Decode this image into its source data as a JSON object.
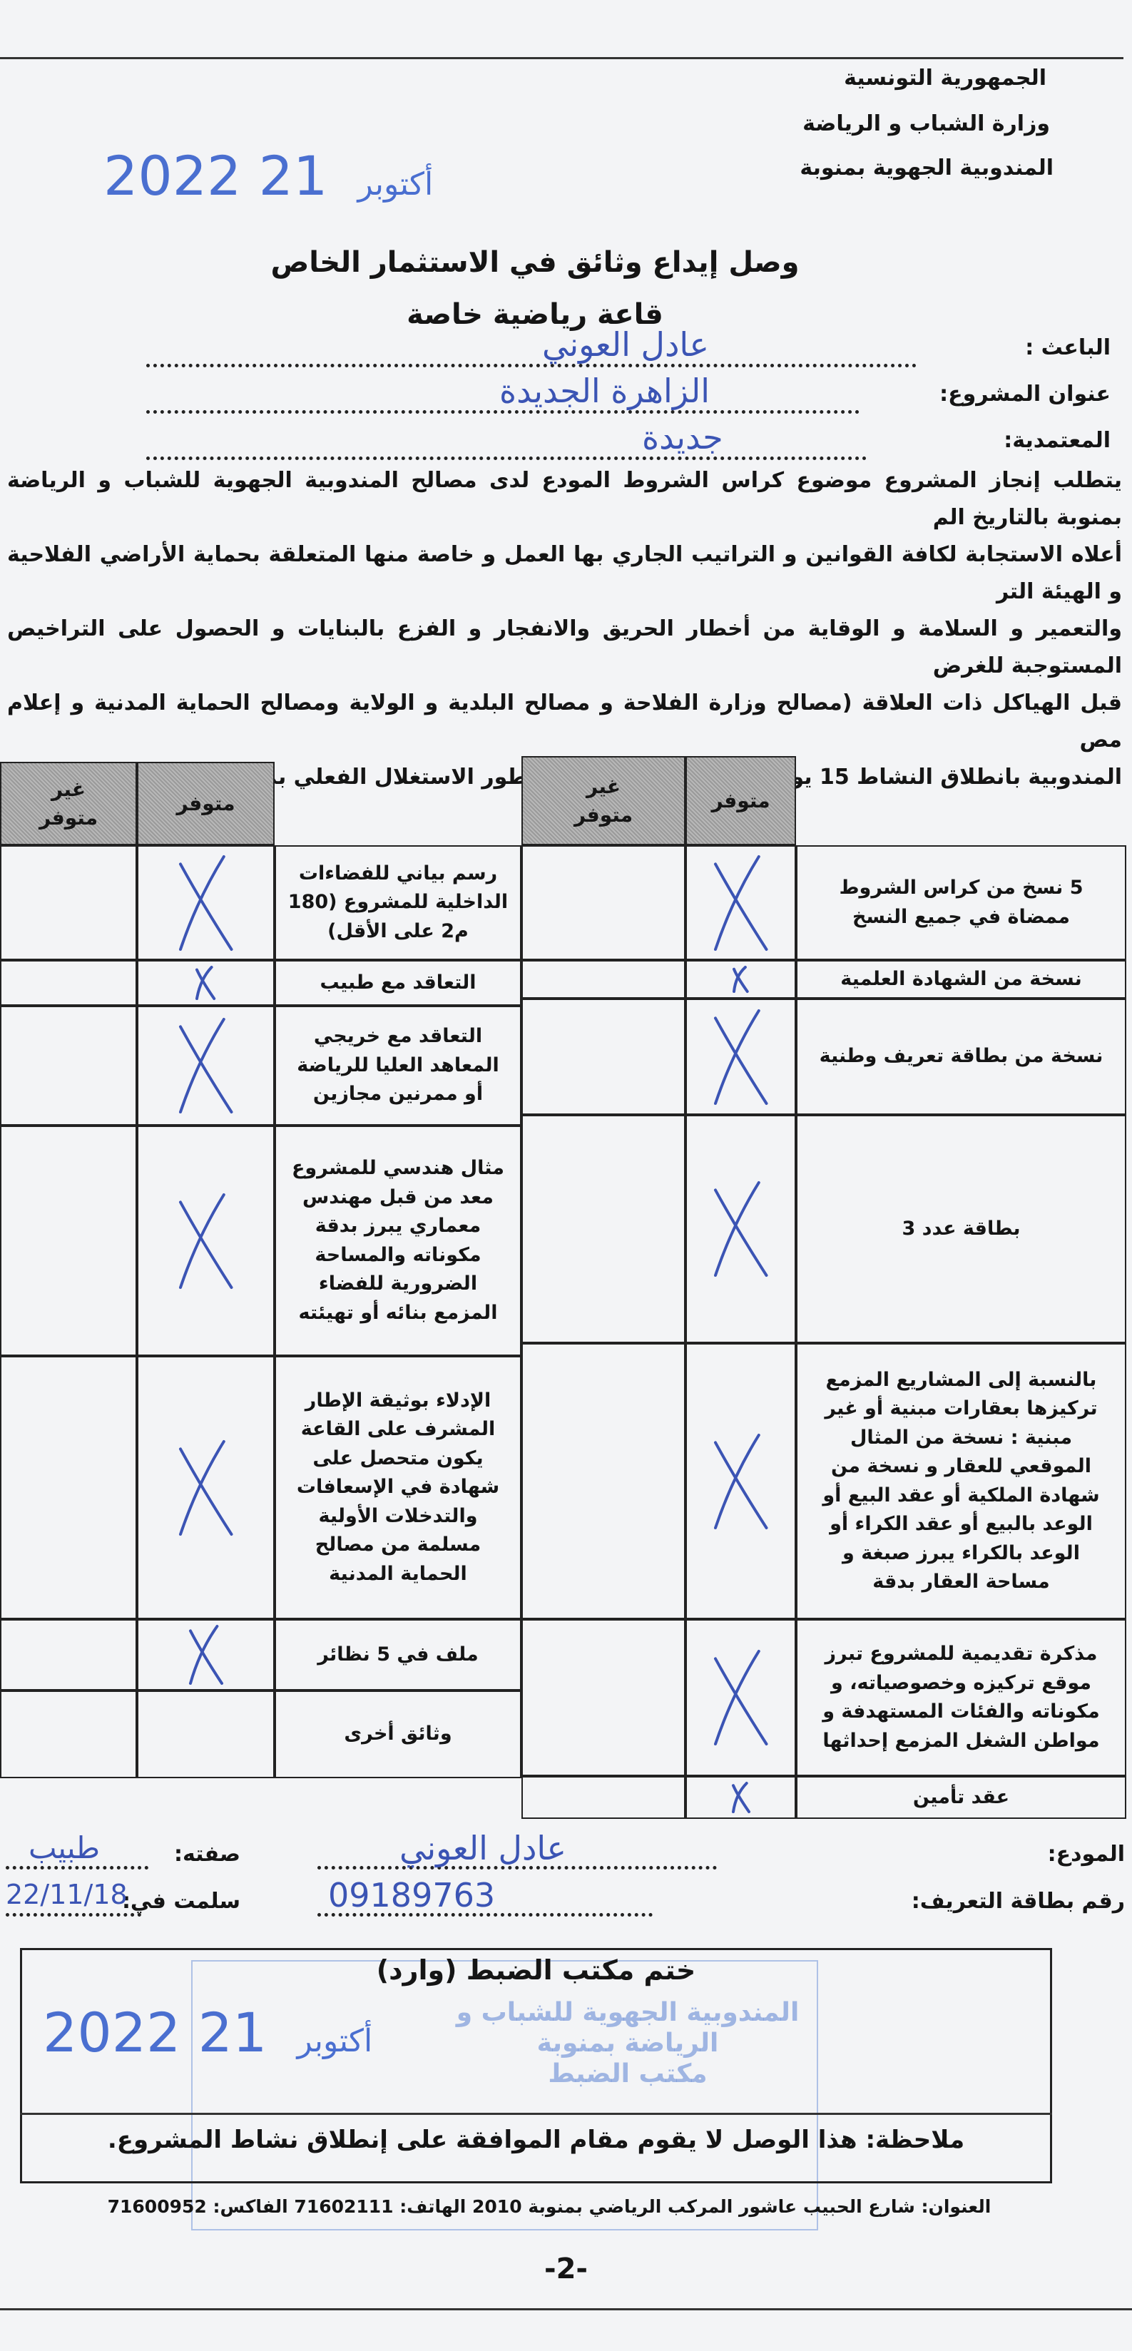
{
  "header": {
    "line1": "الجمهورية التونسية",
    "line2": "وزارة الشباب و الرياضة",
    "line3": "المندوبية الجهوية بمنوبة"
  },
  "date_stamp": {
    "day": "21",
    "month": "أكتوبر",
    "year": "2022"
  },
  "title": "وصل إيداع وثائق في الاستثمار الخاص",
  "subtitle": "قاعة رياضية خاصة",
  "fields": [
    {
      "label": "الباعث :",
      "value": "عادل العوني"
    },
    {
      "label": "عنوان المشروع:",
      "value": "الزاهرة الجديدة"
    },
    {
      "label": "المعتمدية:",
      "value": "جديدة"
    }
  ],
  "paragraph": [
    "يتطلب إنجاز المشروع موضوع كراس الشروط المودع لدى مصالح المندوبية الجهوية للشباب و الرياضة بمنوبة بالتاريخ الم",
    "أعلاه الاستجابة لكافة القوانين و التراتيب الجاري  بها العمل و خاصة منها المتعلقة بحماية الأراضي الفلاحية و الهيئة التر",
    "والتعمير و السلامة و الوقاية من أخطار الحريق والانفجار و الفزع بالبنايات و الحصول على التراخيص المستوجبة للغرض",
    "قبل الهياكل ذات العلاقة (مصالح وزارة الفلاحة و مصالح البلدية و الولاية ومصالح الحماية المدنية و إعلام مص",
    "المندوبية بانطلاق النشاط 15 يوما قبل تاريخ الدخول في طور الاستغلال الفعلي بمكتوب مضمون الوصول)."
  ],
  "table": {
    "col_available": "متوفر",
    "col_unavailable": "غير متوفر",
    "mark_color": "#3b54b4",
    "right_rows": [
      {
        "label": "5 نسخ من كراس الشروط ممضاة في جميع النسخ",
        "available": true
      },
      {
        "label": "نسخة من الشهادة العلمية",
        "available": true
      },
      {
        "label": "نسخة من بطاقة تعريف وطنية",
        "available": true
      },
      {
        "label": "بطاقة عدد 3",
        "available": true
      },
      {
        "label": "بالنسبة إلى المشاريع المزمع تركيزها بعقارات مبنية أو غير مبنية : نسخة من المثال الموقعي للعقار و نسخة من شهادة الملكية أو عقد البيع أو الوعد بالبيع أو عقد الكراء أو الوعد بالكراء يبرز صبغة و مساحة العقار بدقة",
        "available": true
      },
      {
        "label": "مذكرة تقديمية للمشروع تبرز موقع تركيزه وخصوصياته، و مكوناته والفئات المستهدفة و مواطن الشغل المزمع إحداثها",
        "available": true
      },
      {
        "label": "عقد تأمين",
        "available": true
      }
    ],
    "left_rows": [
      {
        "label": "رسم بياني للفضاءات الداخلية للمشروع (180 م2 على الأقل)",
        "available": true
      },
      {
        "label": "التعاقد مع طبيب",
        "available": true
      },
      {
        "label": "التعاقد مع خريجي المعاهد العليا للرياضة أو ممرنين مجازين",
        "available": true
      },
      {
        "label": "مثال هندسي للمشروع معد من قبل مهندس معماري يبرز بدقة مكوناته والمساحة الضرورية للفضاء المزمع بنائه أو تهيئته",
        "available": true
      },
      {
        "label": "الإدلاء بوثيقة الإطار المشرف على القاعة يكون متحصل على شهادة في الإسعافات والتدخلات الأولية مسلمة من مصالح الحماية المدنية",
        "available": true
      },
      {
        "label": "ملف في 5 نظائر",
        "available": true
      },
      {
        "label": "وثائق أخرى",
        "available": false
      }
    ]
  },
  "signature": {
    "depositor_label": "المودع:",
    "depositor_value": "عادل العوني",
    "id_label": "رقم بطاقة التعريف:",
    "id_value": "09189763",
    "role_label": "صفته:",
    "role_value": "طبيب",
    "delivered_label": "سلمت في:",
    "delivered_value": "22/11/18"
  },
  "office_box": {
    "title": "ختم مكتب الضبط (وارد)",
    "stamp_line1": "المندوبية الجهوية للشباب و الرياضة بمنوبة",
    "stamp_line2": "مكتب الضبط",
    "note": "ملاحظة: هذا الوصل لا يقوم مقام الموافقة على إنطلاق نشاط المشروع."
  },
  "footer": {
    "address": "العنوان: شارع الحبيب عاشور المركب الرياضي بمنوبة 2010 الهاتف: 71602111 الفاكس: 71600952",
    "page_number": "-2-"
  }
}
